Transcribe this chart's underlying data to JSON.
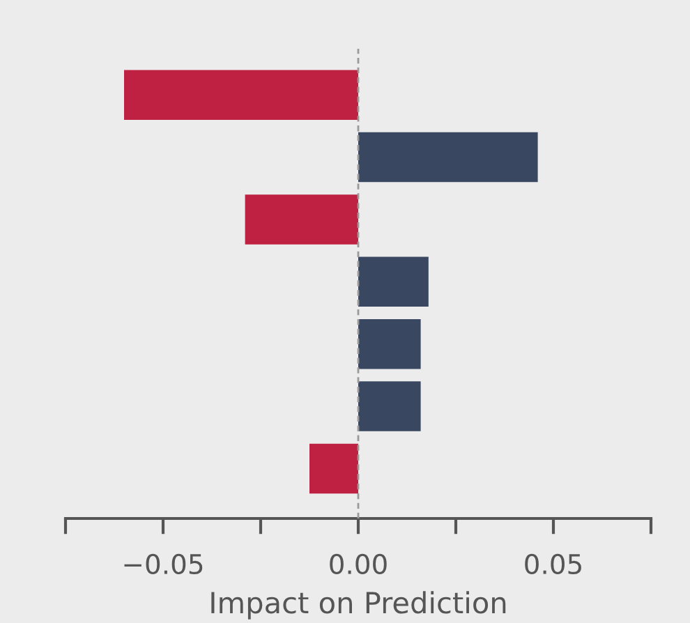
{
  "chart_data": {
    "type": "bar",
    "orientation": "horizontal",
    "xlabel": "Impact on Prediction",
    "categories": [
      null,
      null,
      null,
      null,
      null,
      null,
      null
    ],
    "values": [
      -0.06,
      0.046,
      -0.029,
      0.018,
      0.016,
      0.016,
      -0.0125
    ],
    "colors": [
      "#be2141",
      "#3a4760",
      "#be2141",
      "#3a4760",
      "#3a4760",
      "#3a4760",
      "#be2141"
    ],
    "xlim": [
      -0.075,
      0.075
    ],
    "xticks": [
      {
        "value": -0.075,
        "label": null
      },
      {
        "value": -0.05,
        "label": "−0.05"
      },
      {
        "value": -0.025,
        "label": null
      },
      {
        "value": 0,
        "label": "0.00"
      },
      {
        "value": 0.025,
        "label": null
      },
      {
        "value": 0.05,
        "label": "0.05"
      },
      {
        "value": 0.075,
        "label": null
      }
    ],
    "tick_labels": "x",
    "ref_lines": [
      {
        "axis": "x",
        "value": 0,
        "color": "#9a9a9a",
        "line_style": "dashed"
      }
    ],
    "grid": false
  }
}
